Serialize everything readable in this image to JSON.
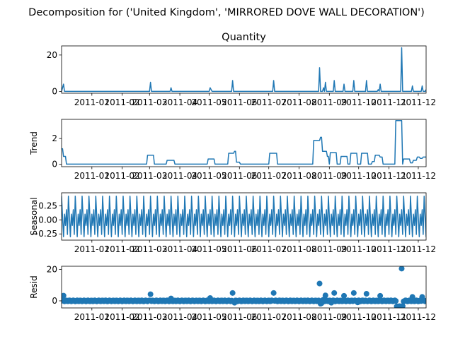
{
  "figure": {
    "suptitle": "Decomposition for ('United Kingdom', 'MIRRORED DOVE WALL DECORATION')",
    "line_color": "#1f77b4",
    "x_ticks": [
      "2011-01",
      "2011-02",
      "2011-03",
      "2011-04",
      "2011-05",
      "2011-06",
      "2011-07",
      "2011-08",
      "2011-09",
      "2011-10",
      "2011-11",
      "2011-12"
    ]
  },
  "chart_data": [
    {
      "type": "line",
      "title": "Quantity",
      "ylabel": "",
      "x_range": [
        "2010-12-01",
        "2011-12-09"
      ],
      "ylim": [
        -1,
        25
      ],
      "y_ticks": [
        0,
        20
      ],
      "points": [
        [
          "2010-12-01",
          0
        ],
        [
          "2010-12-03",
          4
        ],
        [
          "2010-12-04",
          0
        ],
        [
          "2011-03-01",
          0
        ],
        [
          "2011-03-02",
          5
        ],
        [
          "2011-03-03",
          0
        ],
        [
          "2011-03-22",
          0
        ],
        [
          "2011-03-23",
          2
        ],
        [
          "2011-03-24",
          0
        ],
        [
          "2011-05-01",
          0
        ],
        [
          "2011-05-02",
          2
        ],
        [
          "2011-05-04",
          0
        ],
        [
          "2011-05-24",
          0
        ],
        [
          "2011-05-25",
          6
        ],
        [
          "2011-05-26",
          0
        ],
        [
          "2011-07-05",
          0
        ],
        [
          "2011-07-06",
          6
        ],
        [
          "2011-07-07",
          0
        ],
        [
          "2011-08-21",
          0
        ],
        [
          "2011-08-22",
          13
        ],
        [
          "2011-08-23",
          0
        ],
        [
          "2011-08-25",
          0
        ],
        [
          "2011-08-26",
          2
        ],
        [
          "2011-08-27",
          0
        ],
        [
          "2011-08-28",
          5
        ],
        [
          "2011-08-29",
          0
        ],
        [
          "2011-09-05",
          0
        ],
        [
          "2011-09-06",
          6
        ],
        [
          "2011-09-07",
          0
        ],
        [
          "2011-09-15",
          0
        ],
        [
          "2011-09-16",
          4
        ],
        [
          "2011-09-17",
          0
        ],
        [
          "2011-09-25",
          0
        ],
        [
          "2011-09-26",
          6
        ],
        [
          "2011-09-27",
          0
        ],
        [
          "2011-10-08",
          0
        ],
        [
          "2011-10-09",
          6
        ],
        [
          "2011-10-10",
          0
        ],
        [
          "2011-10-20",
          0
        ],
        [
          "2011-10-21",
          1
        ],
        [
          "2011-10-22",
          0
        ],
        [
          "2011-10-23",
          4
        ],
        [
          "2011-10-24",
          0
        ],
        [
          "2011-11-13",
          0
        ],
        [
          "2011-11-14",
          24
        ],
        [
          "2011-11-15",
          0
        ],
        [
          "2011-11-24",
          0
        ],
        [
          "2011-11-25",
          3
        ],
        [
          "2011-11-26",
          0
        ],
        [
          "2011-12-04",
          0
        ],
        [
          "2011-12-05",
          3
        ],
        [
          "2011-12-06",
          0
        ],
        [
          "2011-12-08",
          0
        ],
        [
          "2011-12-09",
          1
        ]
      ]
    },
    {
      "type": "line",
      "title": "",
      "ylabel": "Trend",
      "x_range": [
        "2010-12-01",
        "2011-12-09"
      ],
      "ylim": [
        -0.2,
        3.5
      ],
      "y_ticks": [
        0,
        2
      ],
      "points": [
        [
          "2010-12-01",
          1.2
        ],
        [
          "2010-12-02",
          1.2
        ],
        [
          "2010-12-03",
          0.6
        ],
        [
          "2010-12-05",
          0.6
        ],
        [
          "2010-12-06",
          0
        ],
        [
          "2011-02-26",
          0
        ],
        [
          "2011-02-27",
          0.7
        ],
        [
          "2011-03-05",
          0.7
        ],
        [
          "2011-03-06",
          0
        ],
        [
          "2011-03-18",
          0
        ],
        [
          "2011-03-19",
          0.3
        ],
        [
          "2011-03-26",
          0.3
        ],
        [
          "2011-03-27",
          0
        ],
        [
          "2011-04-29",
          0
        ],
        [
          "2011-04-30",
          0.4
        ],
        [
          "2011-05-06",
          0.4
        ],
        [
          "2011-05-07",
          0
        ],
        [
          "2011-05-20",
          0
        ],
        [
          "2011-05-21",
          0.85
        ],
        [
          "2011-05-26",
          0.85
        ],
        [
          "2011-05-27",
          1.0
        ],
        [
          "2011-05-28",
          1.0
        ],
        [
          "2011-05-29",
          0.15
        ],
        [
          "2011-06-01",
          0.15
        ],
        [
          "2011-06-02",
          0
        ],
        [
          "2011-07-01",
          0
        ],
        [
          "2011-07-02",
          0.85
        ],
        [
          "2011-07-09",
          0.85
        ],
        [
          "2011-07-10",
          0
        ],
        [
          "2011-08-15",
          0
        ],
        [
          "2011-08-16",
          1.85
        ],
        [
          "2011-08-22",
          1.85
        ],
        [
          "2011-08-23",
          2.1
        ],
        [
          "2011-08-24",
          2.1
        ],
        [
          "2011-08-25",
          1.0
        ],
        [
          "2011-08-29",
          1.0
        ],
        [
          "2011-08-30",
          0.6
        ],
        [
          "2011-08-31",
          0.6
        ],
        [
          "2011-09-01",
          0
        ],
        [
          "2011-09-02",
          0.9
        ],
        [
          "2011-09-08",
          0.9
        ],
        [
          "2011-09-09",
          0
        ],
        [
          "2011-09-12",
          0
        ],
        [
          "2011-09-13",
          0.6
        ],
        [
          "2011-09-19",
          0.6
        ],
        [
          "2011-09-20",
          0
        ],
        [
          "2011-09-22",
          0
        ],
        [
          "2011-09-23",
          0.85
        ],
        [
          "2011-09-29",
          0.85
        ],
        [
          "2011-09-30",
          0
        ],
        [
          "2011-10-03",
          0
        ],
        [
          "2011-10-04",
          0.85
        ],
        [
          "2011-10-10",
          0.85
        ],
        [
          "2011-10-11",
          0
        ],
        [
          "2011-10-14",
          0
        ],
        [
          "2011-10-15",
          0.2
        ],
        [
          "2011-10-17",
          0.2
        ],
        [
          "2011-10-18",
          0.7
        ],
        [
          "2011-10-22",
          0.7
        ],
        [
          "2011-10-23",
          0.55
        ],
        [
          "2011-10-25",
          0.55
        ],
        [
          "2011-10-26",
          0
        ],
        [
          "2011-11-07",
          0
        ],
        [
          "2011-11-08",
          3.4
        ],
        [
          "2011-11-14",
          3.4
        ],
        [
          "2011-11-15",
          0
        ],
        [
          "2011-11-16",
          0.4
        ],
        [
          "2011-11-22",
          0.4
        ],
        [
          "2011-11-23",
          0.1
        ],
        [
          "2011-11-25",
          0.1
        ],
        [
          "2011-11-26",
          0.3
        ],
        [
          "2011-11-29",
          0.3
        ],
        [
          "2011-11-30",
          0.55
        ],
        [
          "2011-12-02",
          0.55
        ],
        [
          "2011-12-03",
          0.45
        ],
        [
          "2011-12-05",
          0.45
        ],
        [
          "2011-12-06",
          0.55
        ],
        [
          "2011-12-09",
          0.55
        ]
      ]
    },
    {
      "type": "line",
      "title": "",
      "ylabel": "Seasonal",
      "x_range": [
        "2010-12-01",
        "2011-12-09"
      ],
      "ylim": [
        -0.36,
        0.48
      ],
      "y_ticks": [
        -0.25,
        0.0,
        0.25
      ],
      "y_tick_labels": [
        "−0.25",
        "0.00",
        "0.25"
      ],
      "start": "2010-12-01",
      "period_days": 7,
      "weekly_pattern": [
        0.42,
        0.05,
        -0.3,
        0.1,
        -0.1,
        0.18,
        -0.26
      ]
    },
    {
      "type": "scatter",
      "title": "",
      "ylabel": "Resid",
      "x_range": [
        "2010-12-01",
        "2011-12-09"
      ],
      "ylim": [
        -4.5,
        22
      ],
      "y_ticks": [
        0,
        20
      ],
      "points": [
        [
          "2010-12-03",
          3.3
        ],
        [
          "2011-03-02",
          4.2
        ],
        [
          "2011-03-23",
          1.5
        ],
        [
          "2011-05-02",
          1.8
        ],
        [
          "2011-05-25",
          5.0
        ],
        [
          "2011-05-27",
          -1.2
        ],
        [
          "2011-07-06",
          5.0
        ],
        [
          "2011-08-22",
          11.0
        ],
        [
          "2011-08-23",
          -1.8
        ],
        [
          "2011-08-24",
          -1.5
        ],
        [
          "2011-08-26",
          0.8
        ],
        [
          "2011-08-28",
          3.5
        ],
        [
          "2011-09-06",
          5.0
        ],
        [
          "2011-09-03",
          -1.2
        ],
        [
          "2011-09-16",
          3.2
        ],
        [
          "2011-09-26",
          5.0
        ],
        [
          "2011-09-30",
          -1.0
        ],
        [
          "2011-10-09",
          4.5
        ],
        [
          "2011-10-23",
          3.2
        ],
        [
          "2011-11-14",
          20.5
        ],
        [
          "2011-11-09",
          -3.5
        ],
        [
          "2011-11-10",
          -3.6
        ],
        [
          "2011-11-11",
          -3.5
        ],
        [
          "2011-11-12",
          -3.4
        ],
        [
          "2011-11-13",
          -3.6
        ],
        [
          "2011-11-15",
          -3.3
        ],
        [
          "2011-11-25",
          2.5
        ],
        [
          "2011-12-05",
          2.5
        ]
      ],
      "baseline_value": 0,
      "baseline_jitter": 0.35
    }
  ]
}
